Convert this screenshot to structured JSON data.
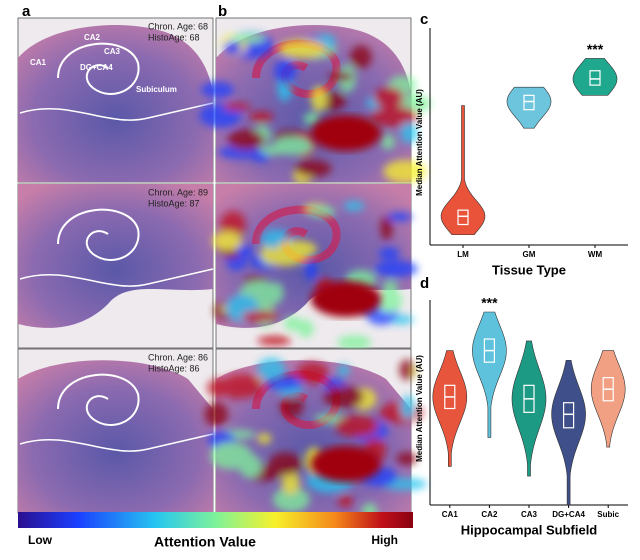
{
  "figure": {
    "panel_labels": [
      "a",
      "b",
      "c",
      "d"
    ],
    "rows": [
      {
        "chron_age": "Chron. Age: 68",
        "histo_age": "HistoAge: 68"
      },
      {
        "chron_age": "Chron. Age: 89",
        "histo_age": "HistoAge: 87"
      },
      {
        "chron_age": "Chron. Age: 86",
        "histo_age": "HistoAge: 86"
      }
    ],
    "regions": [
      "CA1",
      "CA2",
      "CA3",
      "DG+CA4",
      "Subiculum"
    ],
    "colorbar": {
      "low": "Low",
      "title": "Attention Value",
      "high": "High"
    }
  },
  "chart_data": [
    {
      "type": "violin",
      "x_label": "Tissue Type",
      "y_label": "Median Attention Value (AU)",
      "categories": [
        "LM",
        "GM",
        "WM"
      ],
      "colors": [
        "#e8533a",
        "#6cc5dc",
        "#1fa88e"
      ],
      "min": [
        0.05,
        0.57,
        0.73
      ],
      "q1": [
        0.1,
        0.66,
        0.78
      ],
      "median": [
        0.14,
        0.7,
        0.81
      ],
      "q3": [
        0.17,
        0.73,
        0.85
      ],
      "max": [
        0.68,
        0.77,
        0.91
      ],
      "ylim": [
        0,
        1
      ],
      "annotation": {
        "text": "***",
        "category": "WM"
      }
    },
    {
      "type": "violin",
      "x_label": "Hippocampal Subfield",
      "y_label": "Median Attention Value (AU)",
      "categories": [
        "CA1",
        "CA2",
        "CA3",
        "DG+CA4",
        "Subic"
      ],
      "colors": [
        "#e8553d",
        "#5ec2dd",
        "#1d9a84",
        "#3e4f8a",
        "#f2a083"
      ],
      "min": [
        0.2,
        0.35,
        0.15,
        0.0,
        0.3
      ],
      "q1": [
        0.5,
        0.74,
        0.48,
        0.4,
        0.54
      ],
      "median": [
        0.56,
        0.8,
        0.55,
        0.47,
        0.6
      ],
      "q3": [
        0.62,
        0.86,
        0.62,
        0.53,
        0.66
      ],
      "max": [
        0.8,
        1.0,
        0.85,
        0.75,
        0.8
      ],
      "ylim": [
        0,
        1
      ],
      "annotation": {
        "text": "***",
        "category": "CA2"
      }
    }
  ]
}
